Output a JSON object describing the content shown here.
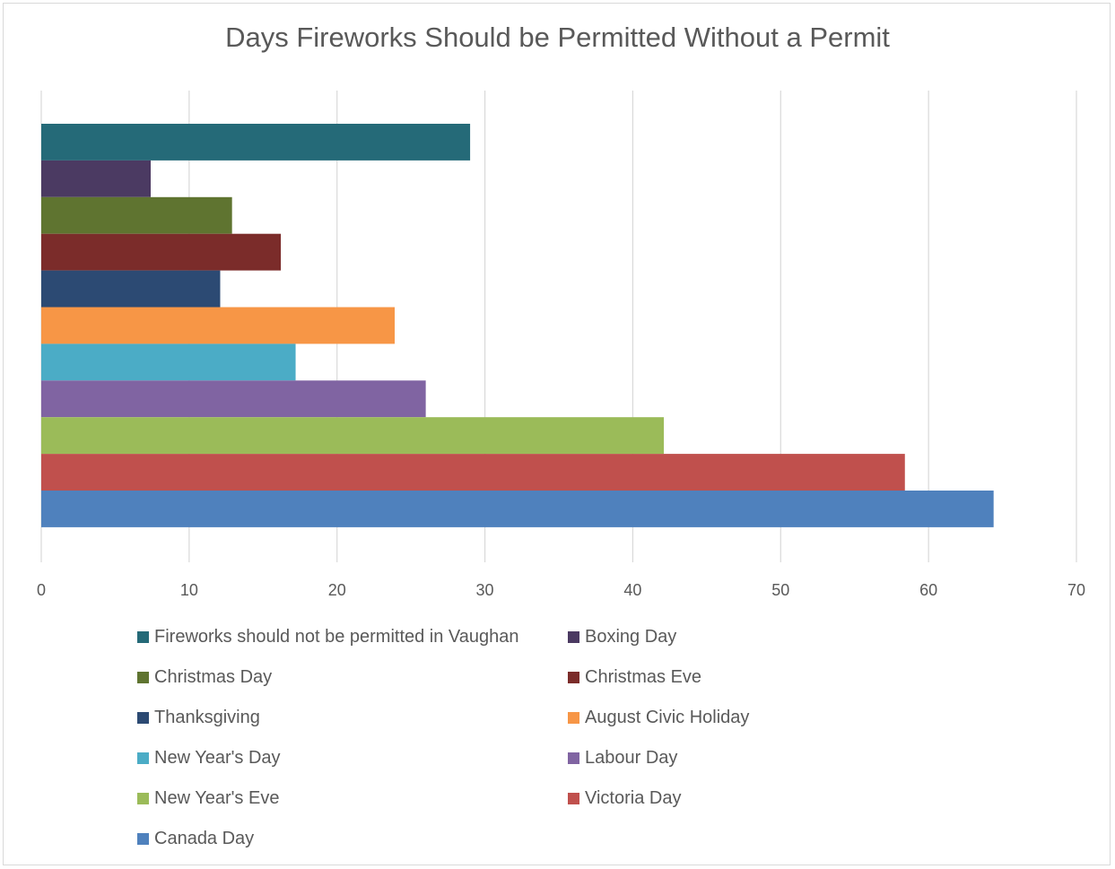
{
  "chart_data": {
    "type": "bar",
    "orientation": "horizontal",
    "title": "Days Fireworks Should be Permitted Without a Permit",
    "xlabel": "",
    "ylabel": "",
    "xlim": [
      0,
      70
    ],
    "x_ticks": [
      0,
      10,
      20,
      30,
      40,
      50,
      60,
      70
    ],
    "grid": "vertical",
    "legend_position": "bottom",
    "series": [
      {
        "name": "Fireworks should not be permitted in Vaughan",
        "value": 29,
        "color": "#256a78"
      },
      {
        "name": "Boxing Day",
        "value": 7.4,
        "color": "#4b3a62"
      },
      {
        "name": "Christmas Day",
        "value": 12.9,
        "color": "#5f7430"
      },
      {
        "name": "Christmas Eve",
        "value": 16.2,
        "color": "#7b2c2a"
      },
      {
        "name": "Thanksgiving",
        "value": 12.1,
        "color": "#2c4a73"
      },
      {
        "name": "August Civic Holiday",
        "value": 23.9,
        "color": "#f79646"
      },
      {
        "name": "New Year's Day",
        "value": 17.2,
        "color": "#4bacc6"
      },
      {
        "name": "Labour Day",
        "value": 26,
        "color": "#8064a2"
      },
      {
        "name": "New Year's Eve",
        "value": 42.1,
        "color": "#9bbb59"
      },
      {
        "name": "Victoria Day",
        "value": 58.4,
        "color": "#c0504d"
      },
      {
        "name": "Canada Day",
        "value": 64.4,
        "color": "#4f81bd"
      }
    ]
  }
}
